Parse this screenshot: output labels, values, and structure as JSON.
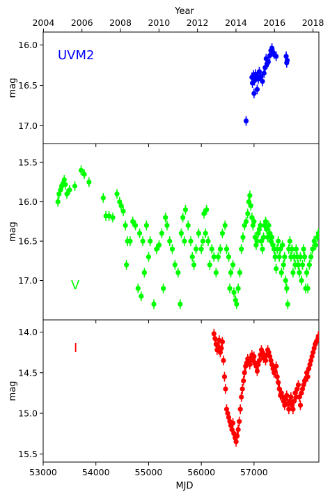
{
  "chart_data": {
    "type": "scatter",
    "shared_x": {
      "label": "MJD",
      "ticks": [
        53000,
        54000,
        55000,
        56000,
        57000
      ],
      "range": [
        53000,
        58230
      ]
    },
    "top_x": {
      "label": "Year",
      "ticks": [
        "2004",
        "2006",
        "2008",
        "2010",
        "2012",
        "2014",
        "2016",
        "2018"
      ],
      "tick_mjd": [
        53005,
        53736,
        54466,
        55197,
        55927,
        56658,
        57388,
        58119
      ]
    },
    "panels": [
      {
        "name": "UVM2",
        "color": "#0000ff",
        "ylabel": "mag",
        "inverted": true,
        "ylim": [
          15.84,
          17.22
        ],
        "yticks": [
          "16.0",
          "16.5",
          "17.0"
        ],
        "points": [
          [
            56850,
            16.94
          ],
          [
            56960,
            16.4
          ],
          [
            56970,
            16.47
          ],
          [
            56990,
            16.37
          ],
          [
            57000,
            16.6
          ],
          [
            57010,
            16.44
          ],
          [
            57030,
            16.36
          ],
          [
            57040,
            16.4
          ],
          [
            57060,
            16.55
          ],
          [
            57080,
            16.42
          ],
          [
            57100,
            16.33
          ],
          [
            57130,
            16.39
          ],
          [
            57160,
            16.45
          ],
          [
            57190,
            16.35
          ],
          [
            57210,
            16.28
          ],
          [
            57230,
            16.17
          ],
          [
            57250,
            16.23
          ],
          [
            57270,
            16.21
          ],
          [
            57300,
            16.13
          ],
          [
            57320,
            16.07
          ],
          [
            57340,
            16.04
          ],
          [
            57360,
            16.09
          ],
          [
            57380,
            16.11
          ],
          [
            57420,
            16.14
          ],
          [
            57610,
            16.14
          ],
          [
            57620,
            16.22
          ],
          [
            57630,
            16.19
          ]
        ]
      },
      {
        "name": "V",
        "color": "#00ff00",
        "ylabel": "mag",
        "inverted": true,
        "ylim": [
          15.26,
          17.5
        ],
        "yticks": [
          "15.5",
          "16.0",
          "16.5",
          "17.0"
        ],
        "points": [
          [
            53280,
            16.0
          ],
          [
            53300,
            15.9
          ],
          [
            53330,
            15.85
          ],
          [
            53350,
            15.8
          ],
          [
            53370,
            15.78
          ],
          [
            53400,
            15.72
          ],
          [
            53420,
            15.78
          ],
          [
            53450,
            15.9
          ],
          [
            53500,
            15.85
          ],
          [
            53600,
            15.8
          ],
          [
            53720,
            15.6
          ],
          [
            53780,
            15.65
          ],
          [
            53870,
            15.75
          ],
          [
            54140,
            15.95
          ],
          [
            54190,
            16.18
          ],
          [
            54250,
            16.18
          ],
          [
            54320,
            16.2
          ],
          [
            54400,
            15.9
          ],
          [
            54450,
            16.0
          ],
          [
            54480,
            16.05
          ],
          [
            54520,
            16.12
          ],
          [
            54560,
            16.3
          ],
          [
            54580,
            16.8
          ],
          [
            54600,
            16.5
          ],
          [
            54650,
            16.5
          ],
          [
            54700,
            16.25
          ],
          [
            54750,
            16.3
          ],
          [
            54800,
            17.1
          ],
          [
            54830,
            16.4
          ],
          [
            54860,
            17.2
          ],
          [
            54890,
            16.5
          ],
          [
            54920,
            16.9
          ],
          [
            54960,
            16.3
          ],
          [
            55000,
            16.7
          ],
          [
            55030,
            16.5
          ],
          [
            55100,
            17.3
          ],
          [
            55150,
            16.6
          ],
          [
            55200,
            16.55
          ],
          [
            55250,
            16.4
          ],
          [
            55280,
            17.1
          ],
          [
            55320,
            16.2
          ],
          [
            55350,
            16.3
          ],
          [
            55400,
            16.5
          ],
          [
            55450,
            16.6
          ],
          [
            55500,
            16.8
          ],
          [
            55560,
            16.9
          ],
          [
            55600,
            17.3
          ],
          [
            55620,
            16.4
          ],
          [
            55650,
            16.2
          ],
          [
            55680,
            16.5
          ],
          [
            55700,
            16.1
          ],
          [
            55750,
            16.3
          ],
          [
            55800,
            16.5
          ],
          [
            55830,
            16.7
          ],
          [
            55860,
            16.8
          ],
          [
            55900,
            16.6
          ],
          [
            55950,
            16.4
          ],
          [
            56000,
            16.6
          ],
          [
            56030,
            16.5
          ],
          [
            56050,
            16.15
          ],
          [
            56080,
            16.4
          ],
          [
            56100,
            16.1
          ],
          [
            56130,
            16.5
          ],
          [
            56160,
            16.8
          ],
          [
            56200,
            16.6
          ],
          [
            56240,
            16.7
          ],
          [
            56280,
            16.9
          ],
          [
            56320,
            16.7
          ],
          [
            56360,
            16.6
          ],
          [
            56400,
            16.4
          ],
          [
            56450,
            16.3
          ],
          [
            56480,
            16.6
          ],
          [
            56520,
            16.7
          ],
          [
            56540,
            17.1
          ],
          [
            56560,
            16.9
          ],
          [
            56600,
            16.8
          ],
          [
            56620,
            17.15
          ],
          [
            56650,
            17.25
          ],
          [
            56670,
            17.3
          ],
          [
            56700,
            17.1
          ],
          [
            56730,
            16.9
          ],
          [
            56760,
            16.6
          ],
          [
            56790,
            16.45
          ],
          [
            56820,
            16.3
          ],
          [
            56850,
            16.25
          ],
          [
            56880,
            16.15
          ],
          [
            56900,
            16.0
          ],
          [
            56920,
            15.92
          ],
          [
            56940,
            16.05
          ],
          [
            56960,
            16.2
          ],
          [
            56980,
            16.3
          ],
          [
            57000,
            16.25
          ],
          [
            57020,
            16.45
          ],
          [
            57040,
            16.55
          ],
          [
            57060,
            16.5
          ],
          [
            57080,
            16.4
          ],
          [
            57100,
            16.35
          ],
          [
            57120,
            16.3
          ],
          [
            57140,
            16.5
          ],
          [
            57160,
            16.6
          ],
          [
            57180,
            16.45
          ],
          [
            57200,
            16.3
          ],
          [
            57220,
            16.25
          ],
          [
            57240,
            16.35
          ],
          [
            57260,
            16.45
          ],
          [
            57280,
            16.3
          ],
          [
            57300,
            16.4
          ],
          [
            57320,
            16.5
          ],
          [
            57340,
            16.45
          ],
          [
            57360,
            16.55
          ],
          [
            57380,
            16.6
          ],
          [
            57400,
            16.7
          ],
          [
            57420,
            16.85
          ],
          [
            57440,
            16.6
          ],
          [
            57460,
            16.5
          ],
          [
            57480,
            16.7
          ],
          [
            57500,
            16.6
          ],
          [
            57520,
            16.9
          ],
          [
            57540,
            16.55
          ],
          [
            57560,
            16.8
          ],
          [
            57580,
            16.7
          ],
          [
            57600,
            17.0
          ],
          [
            57620,
            17.1
          ],
          [
            57640,
            17.3
          ],
          [
            57660,
            16.6
          ],
          [
            57680,
            16.5
          ],
          [
            57700,
            16.7
          ],
          [
            57720,
            16.6
          ],
          [
            57740,
            16.9
          ],
          [
            57760,
            16.7
          ],
          [
            57780,
            16.8
          ],
          [
            57800,
            16.6
          ],
          [
            57820,
            16.7
          ],
          [
            57840,
            16.8
          ],
          [
            57860,
            16.9
          ],
          [
            57880,
            16.7
          ],
          [
            57900,
            17.0
          ],
          [
            57920,
            16.8
          ],
          [
            57940,
            16.6
          ],
          [
            57960,
            16.7
          ],
          [
            57980,
            17.1
          ],
          [
            58000,
            16.9
          ],
          [
            58020,
            17.1
          ],
          [
            58050,
            16.8
          ],
          [
            58080,
            16.7
          ],
          [
            58110,
            16.6
          ],
          [
            58140,
            16.5
          ],
          [
            58170,
            16.55
          ],
          [
            58200,
            16.45
          ],
          [
            58220,
            16.4
          ]
        ]
      },
      {
        "name": "I",
        "color": "#ff0000",
        "ylabel": "mag",
        "inverted": true,
        "ylim": [
          13.85,
          15.6
        ],
        "yticks": [
          "14.0",
          "14.5",
          "15.0",
          "15.5"
        ],
        "points": [
          [
            56240,
            14.02
          ],
          [
            56260,
            14.08
          ],
          [
            56280,
            14.15
          ],
          [
            56300,
            14.22
          ],
          [
            56320,
            14.18
          ],
          [
            56340,
            14.1
          ],
          [
            56360,
            14.25
          ],
          [
            56380,
            14.2
          ],
          [
            56400,
            14.12
          ],
          [
            56420,
            14.35
          ],
          [
            56440,
            14.55
          ],
          [
            56460,
            14.7
          ],
          [
            56480,
            14.95
          ],
          [
            56500,
            15.0
          ],
          [
            56520,
            15.05
          ],
          [
            56540,
            15.1
          ],
          [
            56560,
            15.15
          ],
          [
            56580,
            15.2
          ],
          [
            56600,
            15.12
          ],
          [
            56620,
            15.25
          ],
          [
            56640,
            15.3
          ],
          [
            56660,
            15.35
          ],
          [
            56680,
            15.28
          ],
          [
            56700,
            15.2
          ],
          [
            56720,
            15.1
          ],
          [
            56740,
            14.95
          ],
          [
            56760,
            14.8
          ],
          [
            56780,
            14.7
          ],
          [
            56800,
            14.6
          ],
          [
            56820,
            14.5
          ],
          [
            56840,
            14.42
          ],
          [
            56860,
            14.38
          ],
          [
            56880,
            14.33
          ],
          [
            56900,
            14.36
          ],
          [
            56920,
            14.4
          ],
          [
            56940,
            14.32
          ],
          [
            56960,
            14.28
          ],
          [
            56980,
            14.35
          ],
          [
            57000,
            14.3
          ],
          [
            57020,
            14.38
          ],
          [
            57040,
            14.42
          ],
          [
            57060,
            14.48
          ],
          [
            57080,
            14.4
          ],
          [
            57100,
            14.35
          ],
          [
            57120,
            14.28
          ],
          [
            57140,
            14.22
          ],
          [
            57160,
            14.25
          ],
          [
            57180,
            14.32
          ],
          [
            57200,
            14.3
          ],
          [
            57220,
            14.35
          ],
          [
            57240,
            14.28
          ],
          [
            57260,
            14.22
          ],
          [
            57280,
            14.25
          ],
          [
            57300,
            14.3
          ],
          [
            57320,
            14.35
          ],
          [
            57340,
            14.4
          ],
          [
            57360,
            14.45
          ],
          [
            57380,
            14.5
          ],
          [
            57400,
            14.48
          ],
          [
            57420,
            14.42
          ],
          [
            57440,
            14.55
          ],
          [
            57460,
            14.62
          ],
          [
            57480,
            14.7
          ],
          [
            57500,
            14.78
          ],
          [
            57520,
            14.75
          ],
          [
            57540,
            14.8
          ],
          [
            57560,
            14.85
          ],
          [
            57580,
            14.9
          ],
          [
            57600,
            14.82
          ],
          [
            57620,
            14.78
          ],
          [
            57640,
            14.88
          ],
          [
            57660,
            14.95
          ],
          [
            57680,
            14.85
          ],
          [
            57700,
            14.8
          ],
          [
            57720,
            14.9
          ],
          [
            57740,
            14.95
          ],
          [
            57760,
            14.85
          ],
          [
            57780,
            14.75
          ],
          [
            57800,
            14.8
          ],
          [
            57820,
            14.7
          ],
          [
            57840,
            14.65
          ],
          [
            57860,
            14.8
          ],
          [
            57880,
            14.9
          ],
          [
            57900,
            14.75
          ],
          [
            57920,
            14.7
          ],
          [
            57940,
            14.65
          ],
          [
            57960,
            14.6
          ],
          [
            57980,
            14.58
          ],
          [
            58000,
            14.5
          ],
          [
            58020,
            14.55
          ],
          [
            58040,
            14.45
          ],
          [
            58060,
            14.4
          ],
          [
            58080,
            14.35
          ],
          [
            58100,
            14.3
          ],
          [
            58120,
            14.25
          ],
          [
            58140,
            14.2
          ],
          [
            58160,
            14.15
          ],
          [
            58180,
            14.12
          ],
          [
            58200,
            14.1
          ],
          [
            58220,
            14.05
          ]
        ]
      }
    ]
  }
}
